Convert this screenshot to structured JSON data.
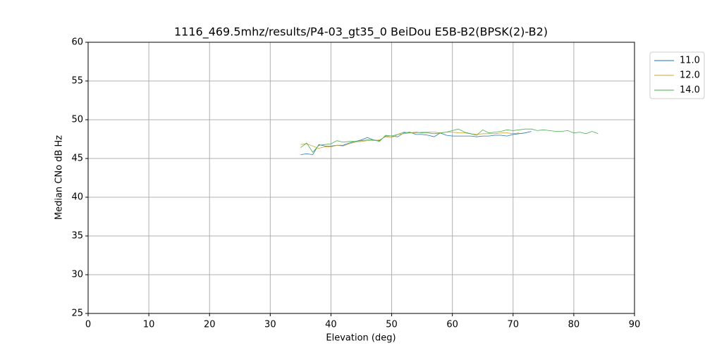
{
  "chart_data": {
    "type": "line",
    "title": "1116_469.5mhz/results/P4-03_gt35_0 BeiDou E5B-B2(BPSK(2)-B2)",
    "x_label": "Elevation (deg)",
    "y_label": "Median CNo dB Hz",
    "x": [
      35,
      36,
      37,
      38,
      39,
      40,
      41,
      42,
      43,
      44,
      45,
      46,
      47,
      48,
      49,
      50,
      51,
      52,
      53,
      54,
      55,
      56,
      57,
      58,
      59,
      60,
      61,
      62,
      63,
      64,
      65,
      66,
      67,
      68,
      69,
      70,
      71,
      72,
      73,
      74,
      75,
      76,
      77,
      78,
      79,
      80,
      81,
      82,
      83,
      84
    ],
    "series": [
      {
        "name": "11.0",
        "color": "#1f77b4",
        "values": [
          45.5,
          45.6,
          45.5,
          46.8,
          46.6,
          46.6,
          46.7,
          46.7,
          47.0,
          47.2,
          47.4,
          47.7,
          47.4,
          47.3,
          47.9,
          47.9,
          47.8,
          48.3,
          48.4,
          48.1,
          48.1,
          48.0,
          47.8,
          48.3,
          48.0,
          47.9,
          47.9,
          47.9,
          47.9,
          47.8,
          47.9,
          47.9,
          48.0,
          48.0,
          47.9,
          48.1,
          48.2,
          48.3,
          48.5,
          null,
          null,
          null,
          null,
          null,
          null,
          null,
          null,
          null,
          null,
          null
        ]
      },
      {
        "name": "12.0",
        "color": "#d4a33a",
        "values": [
          46.8,
          46.9,
          46.6,
          46.3,
          46.5,
          46.5,
          46.7,
          46.6,
          46.9,
          47.1,
          47.2,
          47.3,
          47.3,
          47.4,
          47.8,
          47.7,
          48.1,
          48.2,
          48.3,
          48.3,
          48.4,
          48.4,
          48.4,
          48.3,
          48.4,
          48.4,
          48.3,
          48.3,
          48.2,
          48.1,
          48.2,
          48.2,
          48.2,
          48.3,
          48.3,
          48.2,
          48.3,
          null,
          null,
          null,
          null,
          null,
          null,
          null,
          null,
          null,
          null,
          null,
          null,
          null
        ]
      },
      {
        "name": "14.0",
        "color": "#4caf50",
        "values": [
          46.4,
          47.0,
          45.8,
          46.7,
          46.8,
          46.9,
          47.3,
          47.1,
          47.2,
          47.2,
          47.3,
          47.4,
          47.4,
          47.2,
          48.0,
          47.9,
          48.1,
          48.4,
          48.3,
          48.4,
          48.3,
          48.3,
          48.2,
          48.3,
          48.4,
          48.6,
          48.8,
          48.4,
          48.2,
          48.0,
          48.7,
          48.3,
          48.4,
          48.5,
          48.7,
          48.6,
          48.7,
          48.8,
          48.8,
          48.6,
          48.7,
          48.6,
          48.5,
          48.5,
          48.6,
          48.3,
          48.4,
          48.2,
          48.5,
          48.2
        ]
      }
    ],
    "xlim": [
      0,
      90
    ],
    "xticks": [
      0,
      10,
      20,
      30,
      40,
      50,
      60,
      70,
      80,
      90
    ],
    "ylim": [
      25,
      60
    ],
    "yticks": [
      25,
      30,
      35,
      40,
      45,
      50,
      55,
      60
    ],
    "grid": true,
    "legend": "outside-right"
  }
}
